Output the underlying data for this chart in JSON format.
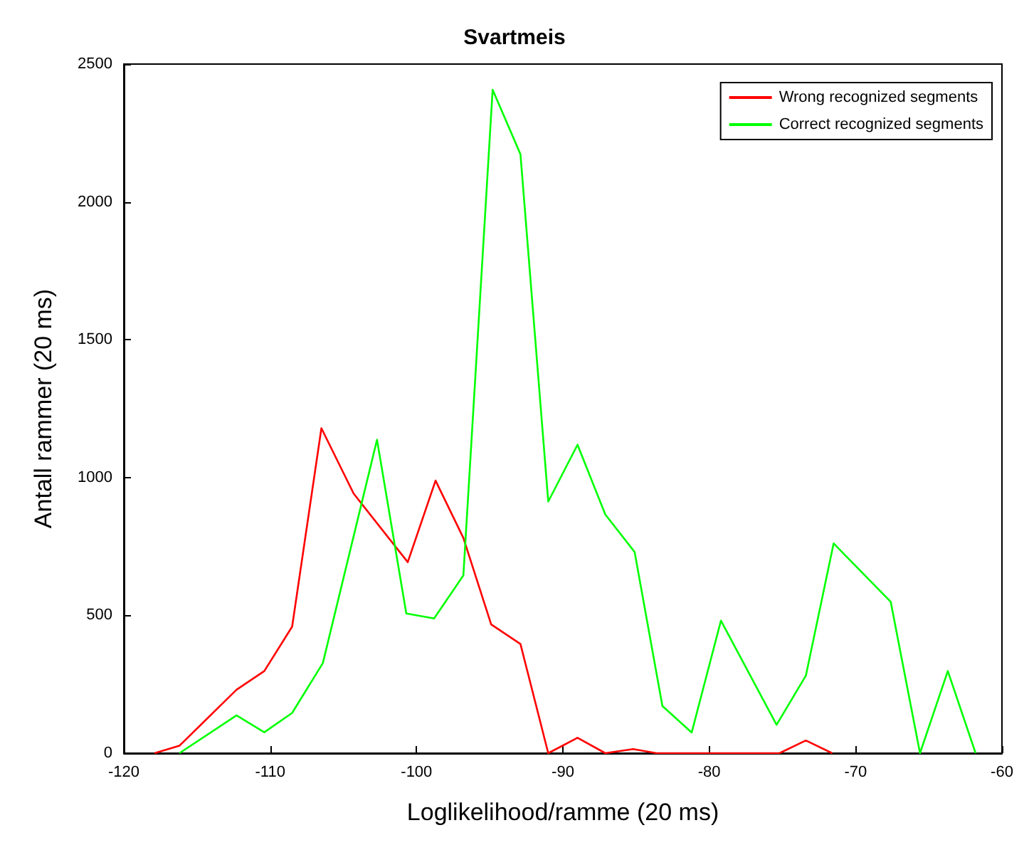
{
  "chart_data": {
    "type": "line",
    "title": "Svartmeis",
    "xlabel": "Loglikelihood/ramme (20 ms)",
    "ylabel": "Antall rammer (20 ms)",
    "xlim": [
      -120,
      -60
    ],
    "xticks": [
      -120,
      -110,
      -100,
      -90,
      -80,
      -70,
      -60
    ],
    "ylim": [
      0,
      2500
    ],
    "yticks": [
      0,
      500,
      1000,
      1500,
      2000,
      2500
    ],
    "grid": false,
    "legend": "top right",
    "marker": "none",
    "line_style": "solid",
    "series": [
      {
        "name": "Wrong recognized segments",
        "color": "#ff0000",
        "x": [
          -117.9,
          -116.2,
          -112.3,
          -110.4,
          -108.5,
          -106.5,
          -104.3,
          -100.6,
          -98.7,
          -96.8,
          -94.9,
          -92.9,
          -91,
          -89,
          -87.1,
          -85.2,
          -83.6,
          -75.2,
          -73.4,
          -71.6
        ],
        "values": [
          0,
          27,
          230,
          298,
          459,
          1179,
          942,
          693,
          989,
          781,
          467,
          396,
          0,
          56,
          0,
          15,
          0,
          0,
          46,
          0
        ]
      },
      {
        "name": "Correct recognized segments",
        "color": "#00ff00",
        "x": [
          -116.2,
          -112.3,
          -110.4,
          -108.5,
          -106.4,
          -102.7,
          -100.7,
          -98.8,
          -96.8,
          -94.8,
          -92.9,
          -91,
          -89,
          -87.1,
          -85.1,
          -83.2,
          -81.2,
          -79.2,
          -75.4,
          -73.4,
          -71.5,
          -67.6,
          -65.6,
          -63.7,
          -61.8
        ],
        "values": [
          0,
          137,
          76,
          146,
          327,
          1137,
          507,
          489,
          645,
          2407,
          2173,
          913,
          1119,
          866,
          730,
          171,
          75,
          481,
          103,
          281,
          761,
          549,
          0,
          298,
          0
        ]
      }
    ]
  }
}
